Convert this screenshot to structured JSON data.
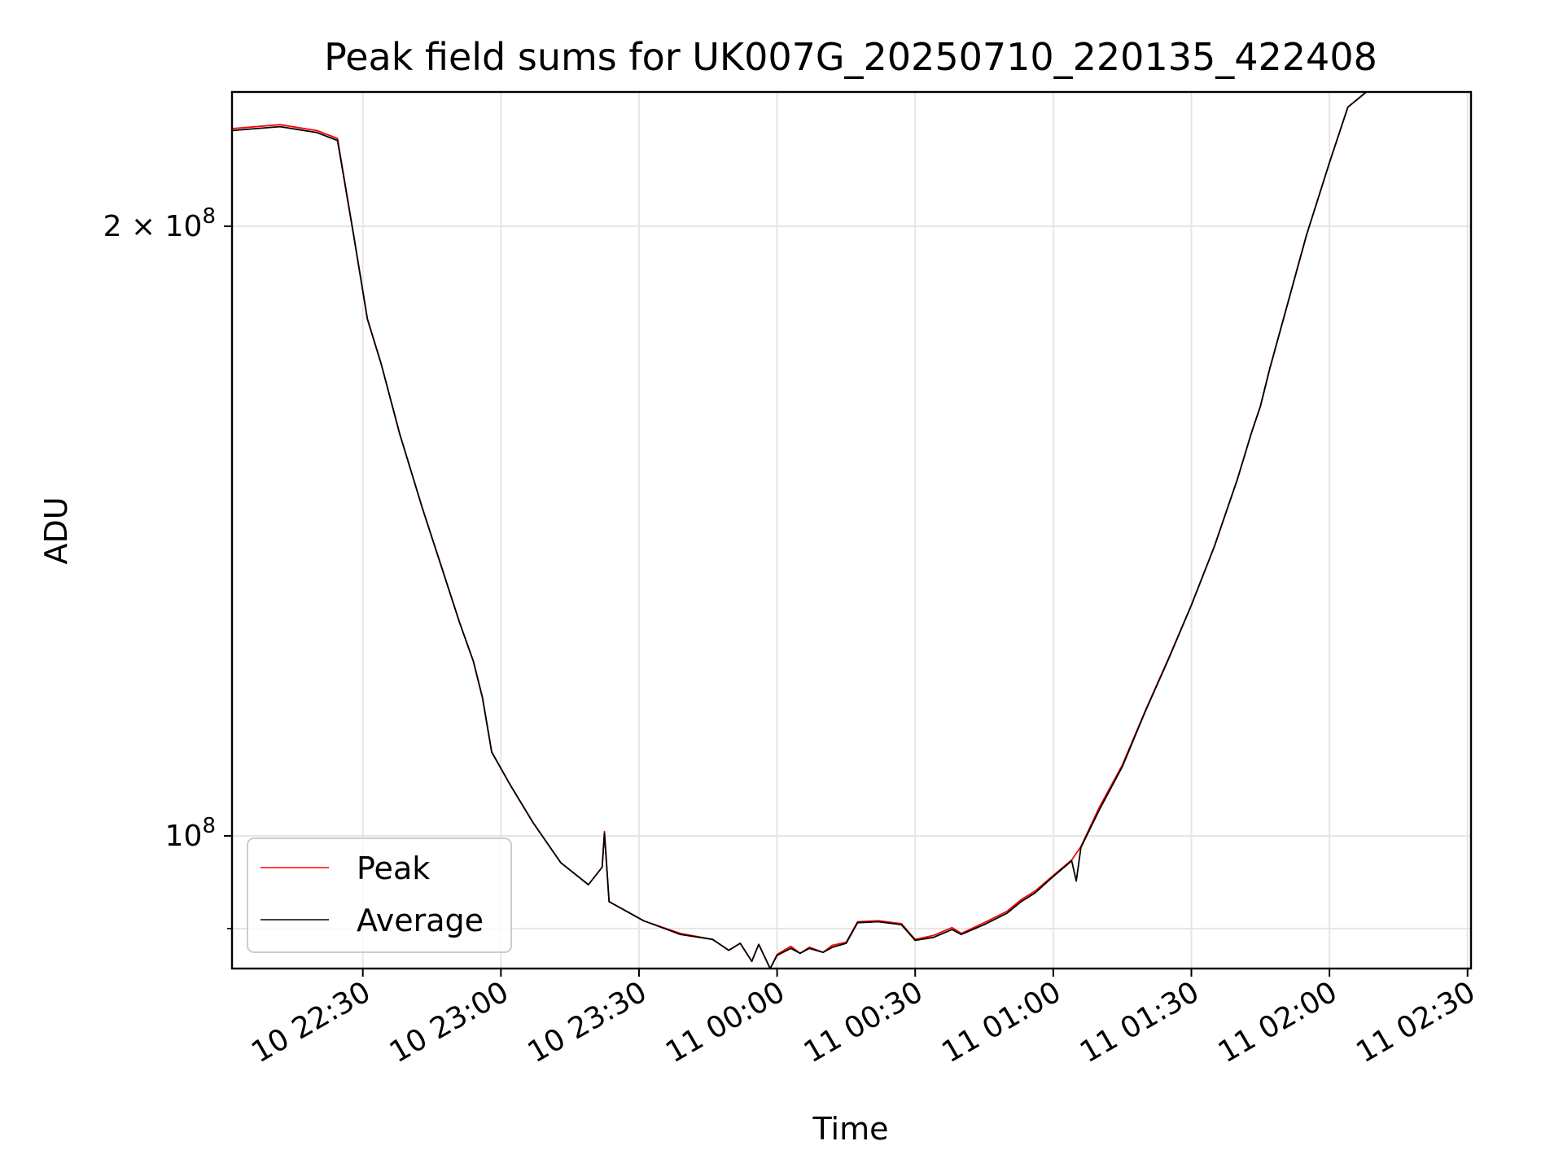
{
  "chart_data": {
    "type": "line",
    "title": "Peak field sums for UK007G_20250710_220135_422408",
    "xlabel": "Time",
    "ylabel": "ADU",
    "y_scale": "log",
    "grid": true,
    "legend_position": "lower-left",
    "xlim": [
      "2025-07-10 22:01:35",
      "2025-07-11 02:30:45"
    ],
    "ylim": [
      86000000,
      233000000
    ],
    "x_ticks": [
      {
        "t": "2025-07-10 22:30:00",
        "label": "10 22:30"
      },
      {
        "t": "2025-07-10 23:00:00",
        "label": "10 23:00"
      },
      {
        "t": "2025-07-10 23:30:00",
        "label": "10 23:30"
      },
      {
        "t": "2025-07-11 00:00:00",
        "label": "11 00:00"
      },
      {
        "t": "2025-07-11 00:30:00",
        "label": "11 00:30"
      },
      {
        "t": "2025-07-11 01:00:00",
        "label": "11 01:00"
      },
      {
        "t": "2025-07-11 01:30:00",
        "label": "11 01:30"
      },
      {
        "t": "2025-07-11 02:00:00",
        "label": "11 02:00"
      },
      {
        "t": "2025-07-11 02:30:00",
        "label": "11 02:30"
      }
    ],
    "y_major_ticks": [
      {
        "value": 100000000,
        "label_base": "10",
        "label_exp": "8",
        "label_coef": ""
      },
      {
        "value": 200000000,
        "label_base": "10",
        "label_exp": "8",
        "label_coef": "2 × "
      }
    ],
    "y_minor_ticks": [
      90000000
    ],
    "series": [
      {
        "name": "Peak",
        "color": "#ff0000",
        "points": [
          [
            "2025-07-10 22:01:35",
            223500000
          ],
          [
            "2025-07-10 22:12:00",
            224500000
          ],
          [
            "2025-07-10 22:20:00",
            223000000
          ],
          [
            "2025-07-10 22:24:30",
            221000000
          ],
          [
            "2025-07-10 22:28:00",
            198000000
          ],
          [
            "2025-07-10 22:31:00",
            180000000
          ],
          [
            "2025-07-10 22:34:00",
            171000000
          ],
          [
            "2025-07-10 22:38:00",
            158000000
          ],
          [
            "2025-07-10 22:43:00",
            145000000
          ],
          [
            "2025-07-10 22:47:00",
            136000000
          ],
          [
            "2025-07-10 22:51:00",
            127500000
          ],
          [
            "2025-07-10 22:54:00",
            122000000
          ],
          [
            "2025-07-10 22:56:00",
            117000000
          ],
          [
            "2025-07-10 22:58:00",
            110000000
          ],
          [
            "2025-07-10 23:02:00",
            106000000
          ],
          [
            "2025-07-10 23:07:00",
            101500000
          ],
          [
            "2025-07-10 23:13:00",
            97000000
          ],
          [
            "2025-07-10 23:19:00",
            94600000
          ],
          [
            "2025-07-10 23:22:00",
            96500000
          ],
          [
            "2025-07-10 23:22:30",
            100500000
          ],
          [
            "2025-07-10 23:23:30",
            92800000
          ],
          [
            "2025-07-10 23:31:00",
            90800000
          ],
          [
            "2025-07-10 23:39:00",
            89500000
          ],
          [
            "2025-07-10 23:46:00",
            88900000
          ],
          [
            "2025-07-10 23:49:30",
            87800000
          ],
          [
            "2025-07-10 23:52:00",
            88500000
          ],
          [
            "2025-07-10 23:54:30",
            86700000
          ],
          [
            "2025-07-10 23:56:00",
            88400000
          ],
          [
            "2025-07-10 23:58:30",
            86000000
          ],
          [
            "2025-07-11 00:00:00",
            87400000
          ],
          [
            "2025-07-11 00:03:00",
            88200000
          ],
          [
            "2025-07-11 00:05:00",
            87500000
          ],
          [
            "2025-07-11 00:07:00",
            88100000
          ],
          [
            "2025-07-11 00:10:00",
            87600000
          ],
          [
            "2025-07-11 00:12:00",
            88300000
          ],
          [
            "2025-07-11 00:15:00",
            88600000
          ],
          [
            "2025-07-11 00:17:30",
            90700000
          ],
          [
            "2025-07-11 00:22:00",
            90800000
          ],
          [
            "2025-07-11 00:27:00",
            90500000
          ],
          [
            "2025-07-11 00:30:00",
            88900000
          ],
          [
            "2025-07-11 00:34:00",
            89300000
          ],
          [
            "2025-07-11 00:38:00",
            90100000
          ],
          [
            "2025-07-11 00:40:00",
            89500000
          ],
          [
            "2025-07-11 00:45:00",
            90600000
          ],
          [
            "2025-07-11 00:50:00",
            91800000
          ],
          [
            "2025-07-11 00:53:00",
            93000000
          ],
          [
            "2025-07-11 00:56:00",
            93900000
          ],
          [
            "2025-07-11 01:00:00",
            95600000
          ],
          [
            "2025-07-11 01:04:00",
            97300000
          ],
          [
            "2025-07-11 01:06:00",
            98800000
          ],
          [
            "2025-07-11 01:10:00",
            103300000
          ],
          [
            "2025-07-11 01:15:00",
            108400000
          ],
          [
            "2025-07-11 01:20:00",
            115300000
          ],
          [
            "2025-07-11 01:25:00",
            122300000
          ],
          [
            "2025-07-11 01:30:00",
            130000000
          ],
          [
            "2025-07-11 01:35:00",
            139000000
          ],
          [
            "2025-07-11 01:40:00",
            150000000
          ],
          [
            "2025-07-11 01:43:00",
            158000000
          ],
          [
            "2025-07-11 01:45:00",
            163000000
          ],
          [
            "2025-07-11 01:47:00",
            170000000
          ],
          [
            "2025-07-11 01:50:00",
            180000000
          ],
          [
            "2025-07-11 01:55:00",
            198000000
          ],
          [
            "2025-07-11 02:00:00",
            215000000
          ],
          [
            "2025-07-11 02:04:00",
            229000000
          ],
          [
            "2025-07-11 02:08:00",
            233000000
          ]
        ]
      },
      {
        "name": "Average",
        "color": "#000000",
        "points": [
          [
            "2025-07-10 22:01:35",
            223000000
          ],
          [
            "2025-07-10 22:12:00",
            224000000
          ],
          [
            "2025-07-10 22:20:00",
            222500000
          ],
          [
            "2025-07-10 22:24:30",
            220500000
          ],
          [
            "2025-07-10 22:28:00",
            198000000
          ],
          [
            "2025-07-10 22:31:00",
            180000000
          ],
          [
            "2025-07-10 22:34:00",
            171000000
          ],
          [
            "2025-07-10 22:38:00",
            158000000
          ],
          [
            "2025-07-10 22:43:00",
            145000000
          ],
          [
            "2025-07-10 22:47:00",
            136000000
          ],
          [
            "2025-07-10 22:51:00",
            127500000
          ],
          [
            "2025-07-10 22:54:00",
            122000000
          ],
          [
            "2025-07-10 22:56:00",
            117000000
          ],
          [
            "2025-07-10 22:58:00",
            110000000
          ],
          [
            "2025-07-10 23:02:00",
            106000000
          ],
          [
            "2025-07-10 23:07:00",
            101500000
          ],
          [
            "2025-07-10 23:13:00",
            97000000
          ],
          [
            "2025-07-10 23:19:00",
            94600000
          ],
          [
            "2025-07-10 23:22:00",
            96500000
          ],
          [
            "2025-07-10 23:22:30",
            100300000
          ],
          [
            "2025-07-10 23:23:30",
            92800000
          ],
          [
            "2025-07-10 23:31:00",
            90800000
          ],
          [
            "2025-07-10 23:39:00",
            89400000
          ],
          [
            "2025-07-10 23:46:00",
            88900000
          ],
          [
            "2025-07-10 23:49:30",
            87800000
          ],
          [
            "2025-07-10 23:52:00",
            88500000
          ],
          [
            "2025-07-10 23:54:30",
            86700000
          ],
          [
            "2025-07-10 23:56:00",
            88400000
          ],
          [
            "2025-07-10 23:58:30",
            86000000
          ],
          [
            "2025-07-11 00:00:00",
            87300000
          ],
          [
            "2025-07-11 00:03:00",
            88000000
          ],
          [
            "2025-07-11 00:05:00",
            87500000
          ],
          [
            "2025-07-11 00:07:00",
            88000000
          ],
          [
            "2025-07-11 00:10:00",
            87600000
          ],
          [
            "2025-07-11 00:12:00",
            88100000
          ],
          [
            "2025-07-11 00:15:00",
            88500000
          ],
          [
            "2025-07-11 00:17:30",
            90600000
          ],
          [
            "2025-07-11 00:22:00",
            90700000
          ],
          [
            "2025-07-11 00:27:00",
            90400000
          ],
          [
            "2025-07-11 00:30:00",
            88800000
          ],
          [
            "2025-07-11 00:34:00",
            89100000
          ],
          [
            "2025-07-11 00:38:00",
            89900000
          ],
          [
            "2025-07-11 00:40:00",
            89400000
          ],
          [
            "2025-07-11 00:45:00",
            90400000
          ],
          [
            "2025-07-11 00:50:00",
            91600000
          ],
          [
            "2025-07-11 00:53:00",
            92800000
          ],
          [
            "2025-07-11 00:56:00",
            93700000
          ],
          [
            "2025-07-11 01:00:00",
            95500000
          ],
          [
            "2025-07-11 01:04:00",
            97200000
          ],
          [
            "2025-07-11 01:05:00",
            95000000
          ],
          [
            "2025-07-11 01:06:00",
            98700000
          ],
          [
            "2025-07-11 01:10:00",
            103000000
          ],
          [
            "2025-07-11 01:15:00",
            108200000
          ],
          [
            "2025-07-11 01:20:00",
            115200000
          ],
          [
            "2025-07-11 01:25:00",
            122200000
          ],
          [
            "2025-07-11 01:30:00",
            130000000
          ],
          [
            "2025-07-11 01:35:00",
            139000000
          ],
          [
            "2025-07-11 01:40:00",
            150000000
          ],
          [
            "2025-07-11 01:43:00",
            158000000
          ],
          [
            "2025-07-11 01:45:00",
            163000000
          ],
          [
            "2025-07-11 01:47:00",
            170000000
          ],
          [
            "2025-07-11 01:50:00",
            180000000
          ],
          [
            "2025-07-11 01:55:00",
            198000000
          ],
          [
            "2025-07-11 02:00:00",
            215000000
          ],
          [
            "2025-07-11 02:04:00",
            229000000
          ],
          [
            "2025-07-11 02:08:00",
            233000000
          ]
        ]
      }
    ]
  }
}
